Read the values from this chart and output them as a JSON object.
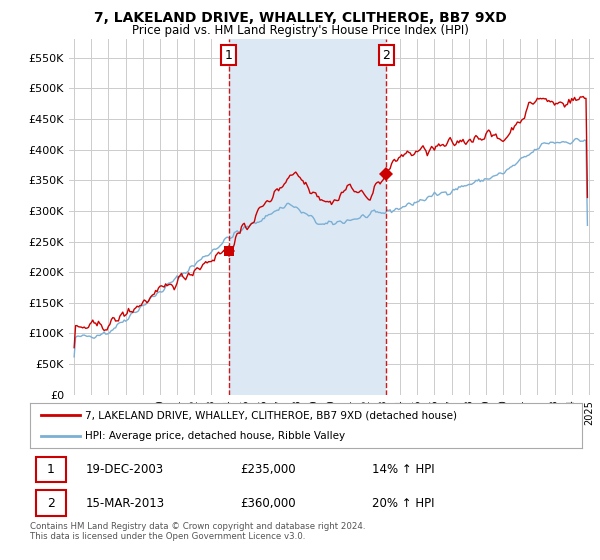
{
  "title": "7, LAKELAND DRIVE, WHALLEY, CLITHEROE, BB7 9XD",
  "subtitle": "Price paid vs. HM Land Registry's House Price Index (HPI)",
  "ylim": [
    0,
    580000
  ],
  "yticks": [
    0,
    50000,
    100000,
    150000,
    200000,
    250000,
    300000,
    350000,
    400000,
    450000,
    500000,
    550000
  ],
  "ytick_labels": [
    "£0",
    "£50K",
    "£100K",
    "£150K",
    "£200K",
    "£250K",
    "£300K",
    "£350K",
    "£400K",
    "£450K",
    "£500K",
    "£550K"
  ],
  "house_color": "#cc0000",
  "hpi_color": "#7bafd4",
  "shade_color": "#dce9f5",
  "grid_color": "#cccccc",
  "plot_bg": "#ffffff",
  "fig_bg": "#ffffff",
  "t1_x": 2004.0,
  "t2_x": 2013.2,
  "t1_y": 235000,
  "t2_y": 360000,
  "legend_house": "7, LAKELAND DRIVE, WHALLEY, CLITHEROE, BB7 9XD (detached house)",
  "legend_hpi": "HPI: Average price, detached house, Ribble Valley",
  "row1_date": "19-DEC-2003",
  "row1_price": "£235,000",
  "row1_pct": "14% ↑ HPI",
  "row2_date": "15-MAR-2013",
  "row2_price": "£360,000",
  "row2_pct": "20% ↑ HPI",
  "footer": "Contains HM Land Registry data © Crown copyright and database right 2024.\nThis data is licensed under the Open Government Licence v3.0.",
  "xlim_left": 1994.7,
  "xlim_right": 2025.3
}
